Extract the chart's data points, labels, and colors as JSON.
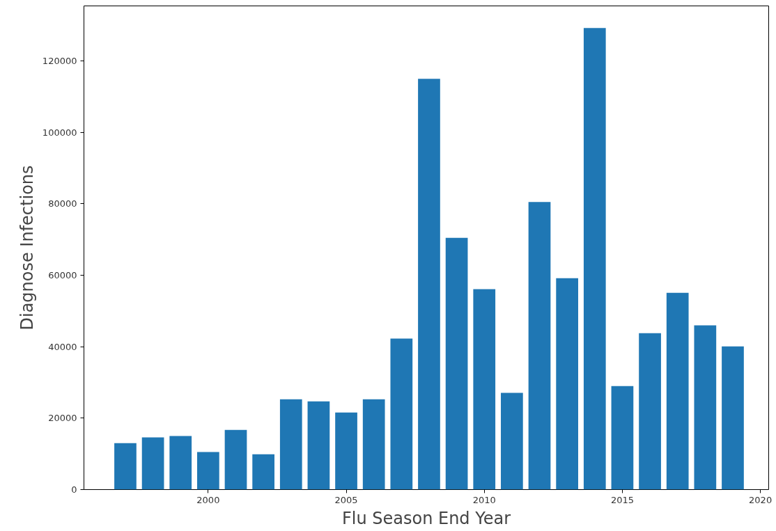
{
  "chart_data": {
    "type": "bar",
    "xlabel": "Flu Season End Year",
    "ylabel": "Diagnose Infections",
    "x": [
      1997,
      1998,
      1999,
      2000,
      2001,
      2002,
      2003,
      2004,
      2005,
      2006,
      2007,
      2008,
      2009,
      2010,
      2011,
      2012,
      2013,
      2014,
      2015,
      2016,
      2017,
      2018,
      2019
    ],
    "values": [
      13000,
      14600,
      15000,
      10500,
      16700,
      9900,
      25300,
      24700,
      21600,
      25300,
      42300,
      115000,
      70500,
      56100,
      27100,
      80500,
      59200,
      129200,
      29000,
      43800,
      55100,
      46000,
      40100
    ],
    "color": "#1f77b4",
    "xlim": [
      1995.5,
      2020.3
    ],
    "xticks": [
      2000,
      2005,
      2010,
      2015,
      2020
    ],
    "ylim": [
      0,
      135400
    ],
    "yticks": [
      0,
      20000,
      40000,
      60000,
      80000,
      100000,
      120000
    ],
    "grid": false
  }
}
